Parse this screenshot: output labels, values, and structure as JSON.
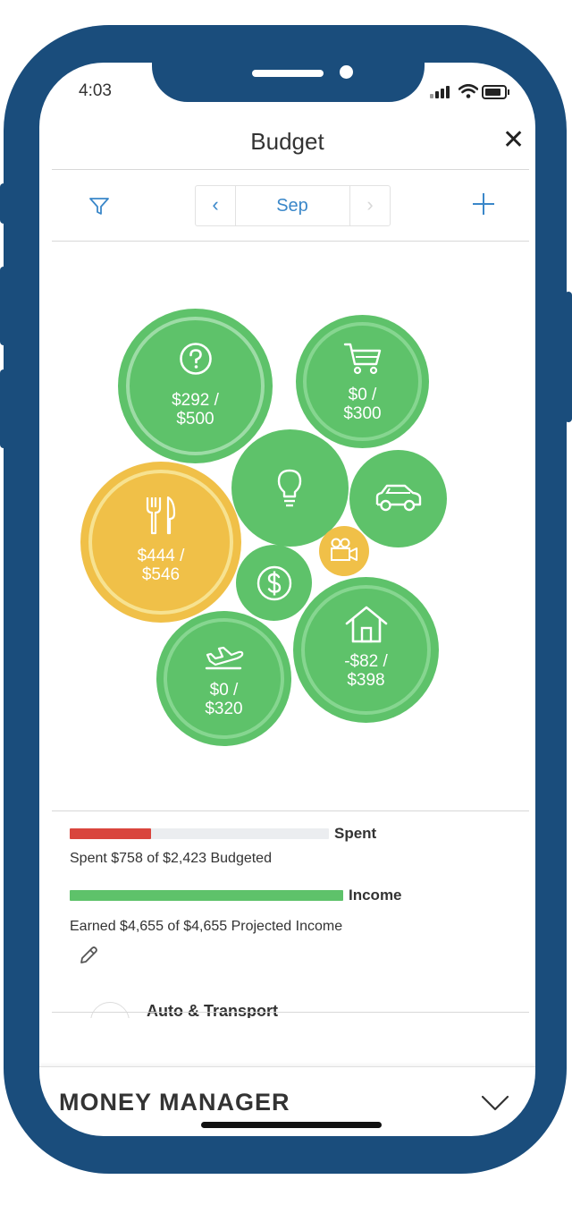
{
  "status": {
    "time": "4:03"
  },
  "header": {
    "title": "Budget"
  },
  "month_nav": {
    "prev": "‹",
    "label": "Sep",
    "next": "›"
  },
  "bubbles": [
    {
      "id": "uncategorized",
      "icon": "question-icon",
      "color": "#5ec26a",
      "amount": "$292 /\n$500",
      "line1": "$292 /",
      "line2": "$500"
    },
    {
      "id": "shopping",
      "icon": "cart-icon",
      "color": "#5ec26a",
      "line1": "$0 /",
      "line2": "$300"
    },
    {
      "id": "bills",
      "icon": "lightbulb-icon",
      "color": "#5ec26a"
    },
    {
      "id": "auto",
      "icon": "car-icon",
      "color": "#5ec26a"
    },
    {
      "id": "food",
      "icon": "fork-knife-icon",
      "color": "#f0c048",
      "line1": "$444 /",
      "line2": "$546"
    },
    {
      "id": "entertainment",
      "icon": "video-camera-icon",
      "color": "#f0c048"
    },
    {
      "id": "income",
      "icon": "dollar-icon",
      "color": "#5ec26a"
    },
    {
      "id": "home",
      "icon": "house-icon",
      "color": "#5ec26a",
      "line1": "-$82 /",
      "line2": "$398"
    },
    {
      "id": "travel",
      "icon": "airplane-icon",
      "color": "#5ec26a",
      "line1": "$0 /",
      "line2": "$320"
    }
  ],
  "summary": {
    "spent_label": "Spent",
    "spent_text": "Spent $758 of $2,423 Budgeted",
    "spent_fraction": 0.313,
    "spent_color": "#d9453d",
    "income_label": "Income",
    "income_text": "Earned $4,655 of $4,655 Projected Income",
    "income_fraction": 1.0,
    "income_color": "#5ec26a"
  },
  "category_preview": {
    "label": "Auto & Transport"
  },
  "footer": {
    "title": "MONEY MANAGER"
  },
  "colors": {
    "phone": "#1a4d7c",
    "accent": "#3a87c9",
    "green": "#5ec26a",
    "yellow": "#f0c048",
    "red": "#d9453d"
  }
}
